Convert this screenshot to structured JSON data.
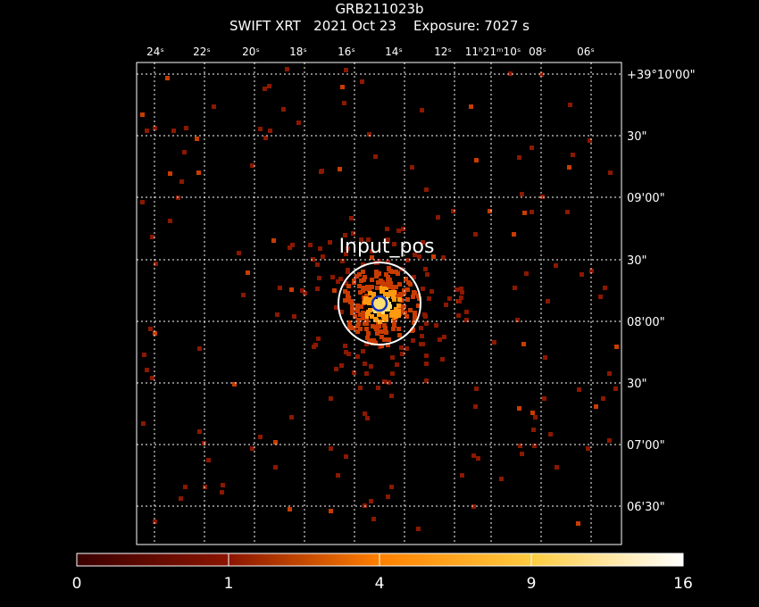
{
  "header": {
    "object": "GRB211023b",
    "subtitle": "SWIFT XRT   2021 Oct 23    Exposure: 7027 s"
  },
  "ra_ticks": [
    "24ˢ",
    "22ˢ",
    "20ˢ",
    "18ˢ",
    "16ˢ",
    "14ˢ",
    "12ˢ",
    "11ʰ21ᵐ10ˢ",
    "08ˢ",
    "06ˢ"
  ],
  "dec_ticks": [
    "+39°10'00\"",
    "30\"",
    "09'00\"",
    "30\"",
    "08'00\"",
    "30\"",
    "07'00\"",
    "06'30\""
  ],
  "region": {
    "label": "Input_pos",
    "outer_color": "#ffffff",
    "inner_color": "#1030c0"
  },
  "colorbar": {
    "ticks": [
      "0",
      "1",
      "4",
      "9",
      "16"
    ],
    "gradient": [
      "#3a0000",
      "#7a0a00",
      "#b32a00",
      "#e05a00",
      "#ff8c00",
      "#ffb020",
      "#ffd860",
      "#ffffff"
    ]
  },
  "counts_colors": {
    "low": "#8b1800",
    "mid": "#c83c00",
    "high": "#ff9a10",
    "peak": "#ffe070"
  }
}
